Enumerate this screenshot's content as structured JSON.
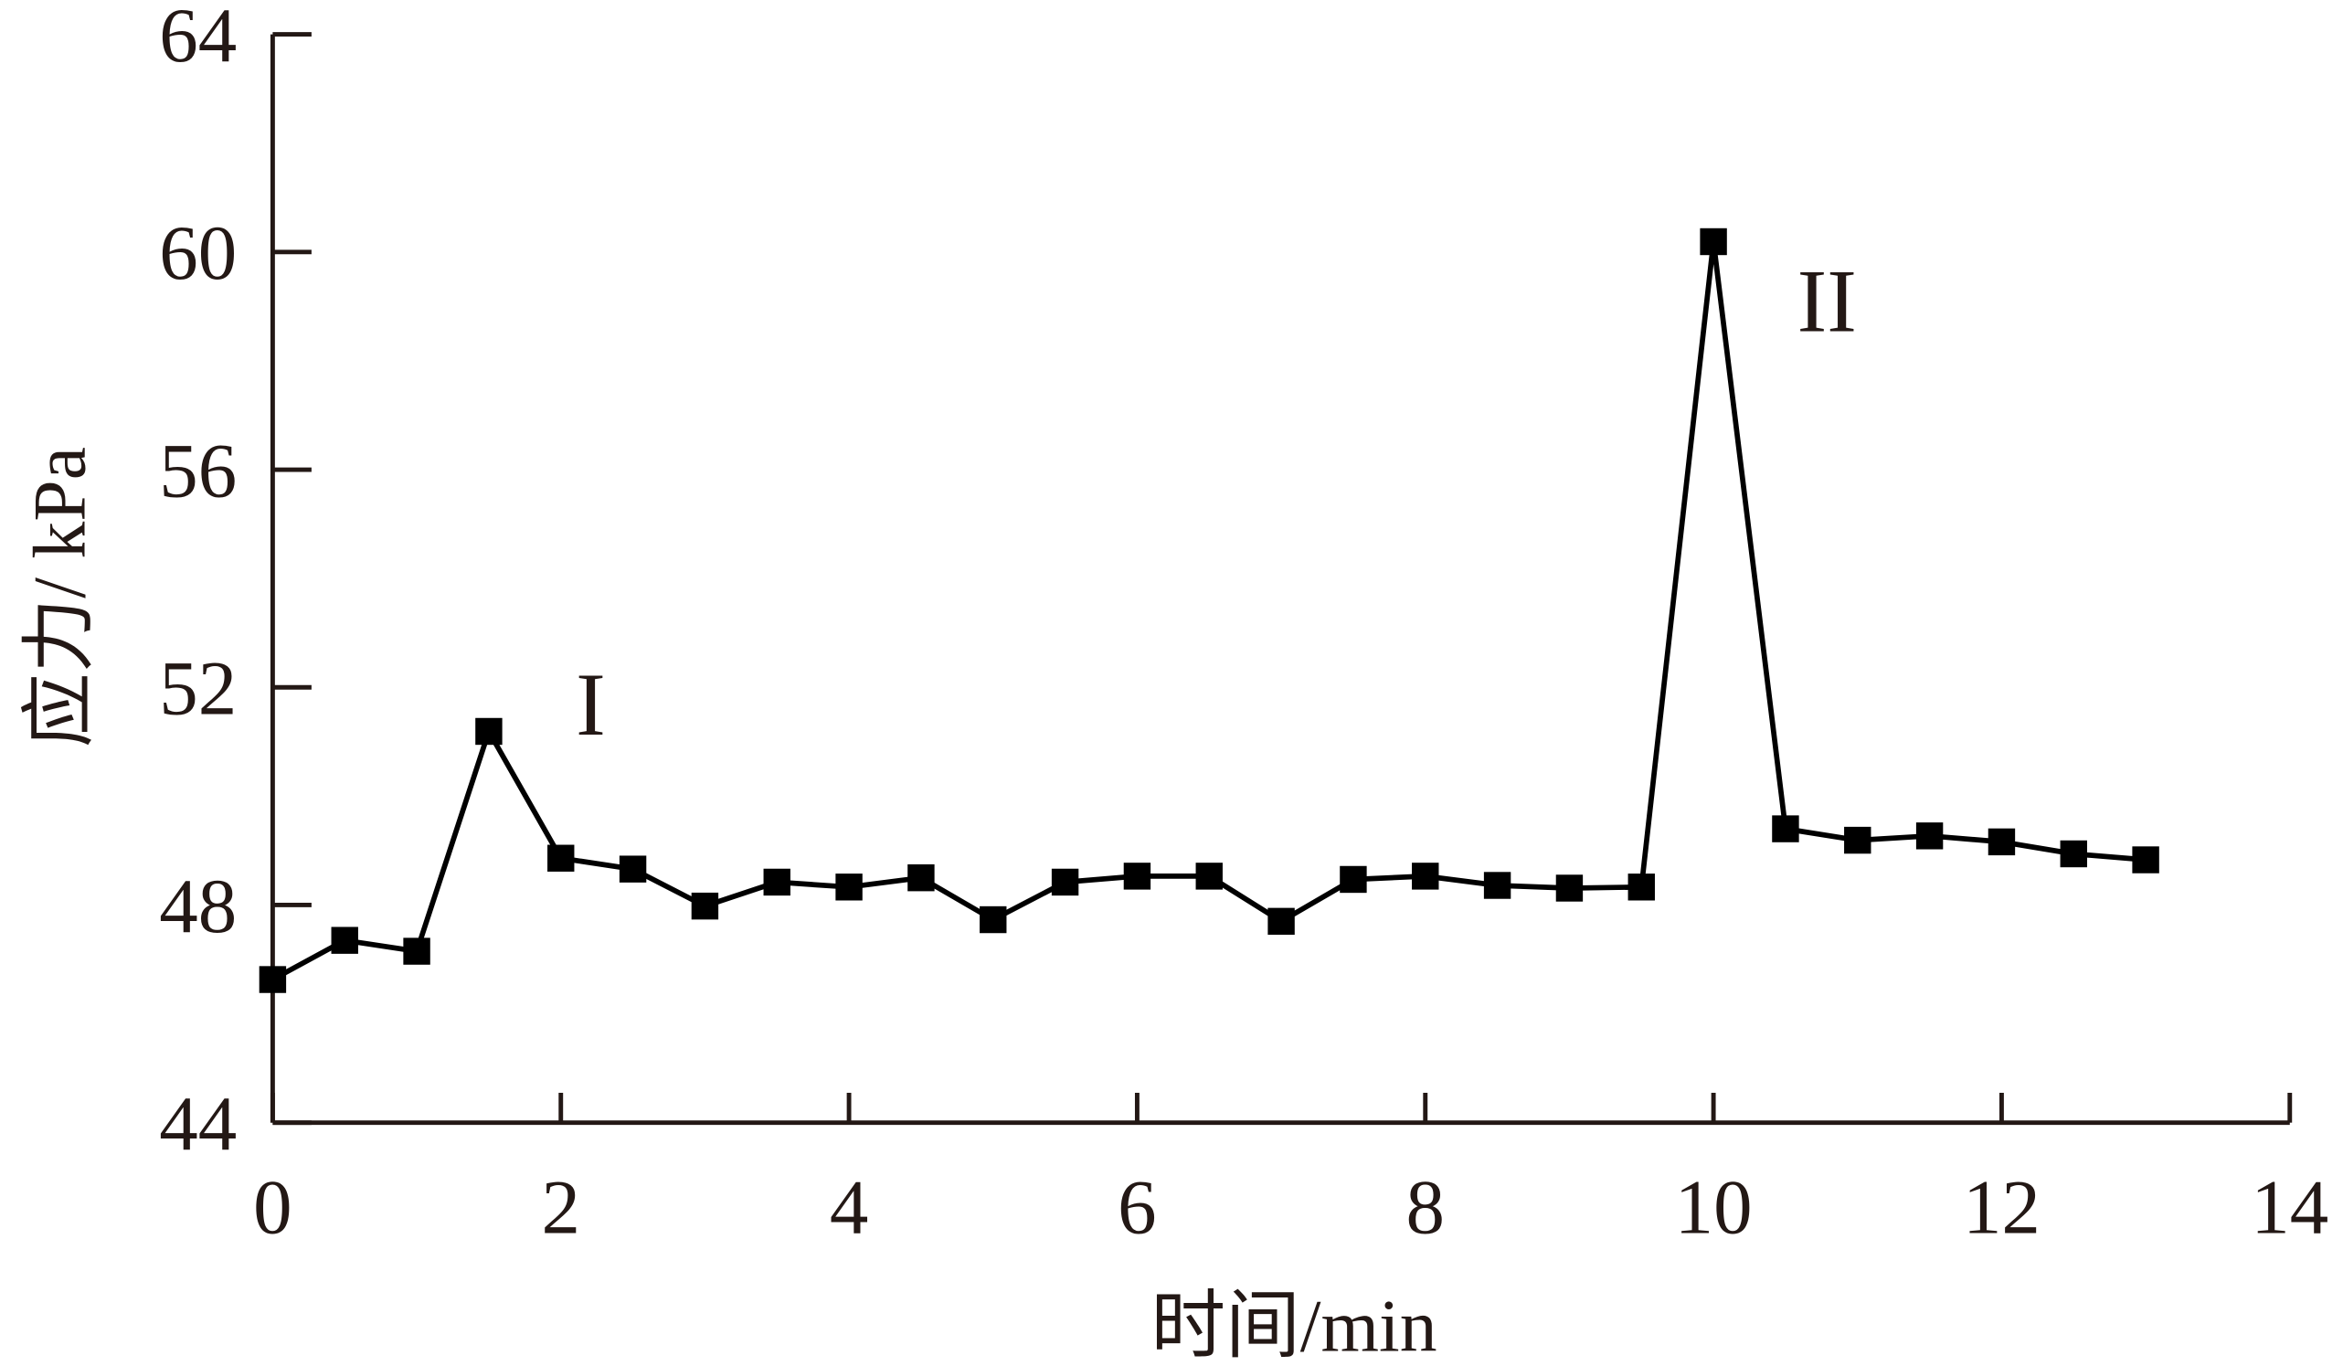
{
  "chart_data": {
    "type": "line",
    "xlabel": "时间/min",
    "ylabel": "应力/ kPa",
    "annotations": [
      "I",
      "II"
    ],
    "x": [
      0,
      0.5,
      1,
      1.5,
      2,
      2.5,
      3,
      3.5,
      4,
      4.5,
      5,
      5.5,
      6,
      6.5,
      7,
      7.5,
      8,
      8.5,
      9,
      9.5,
      10,
      10.5,
      11,
      11.5,
      12,
      12.5,
      13
    ],
    "series": [
      {
        "color": "#000000",
        "values": [
          46.63,
          47.35,
          47.15,
          51.19,
          48.86,
          48.66,
          47.98,
          48.42,
          48.33,
          48.5,
          47.73,
          48.42,
          48.53,
          48.53,
          47.7,
          48.47,
          48.53,
          48.36,
          48.31,
          48.33,
          60.19,
          49.4,
          49.19,
          49.27,
          49.16,
          48.94,
          48.83
        ]
      }
    ],
    "xlim": [
      0,
      14
    ],
    "xticks": [
      0,
      2,
      4,
      6,
      8,
      10,
      12,
      14
    ],
    "ylim": [
      44,
      64
    ],
    "yticks": [
      44,
      48,
      52,
      56,
      60,
      64
    ]
  }
}
